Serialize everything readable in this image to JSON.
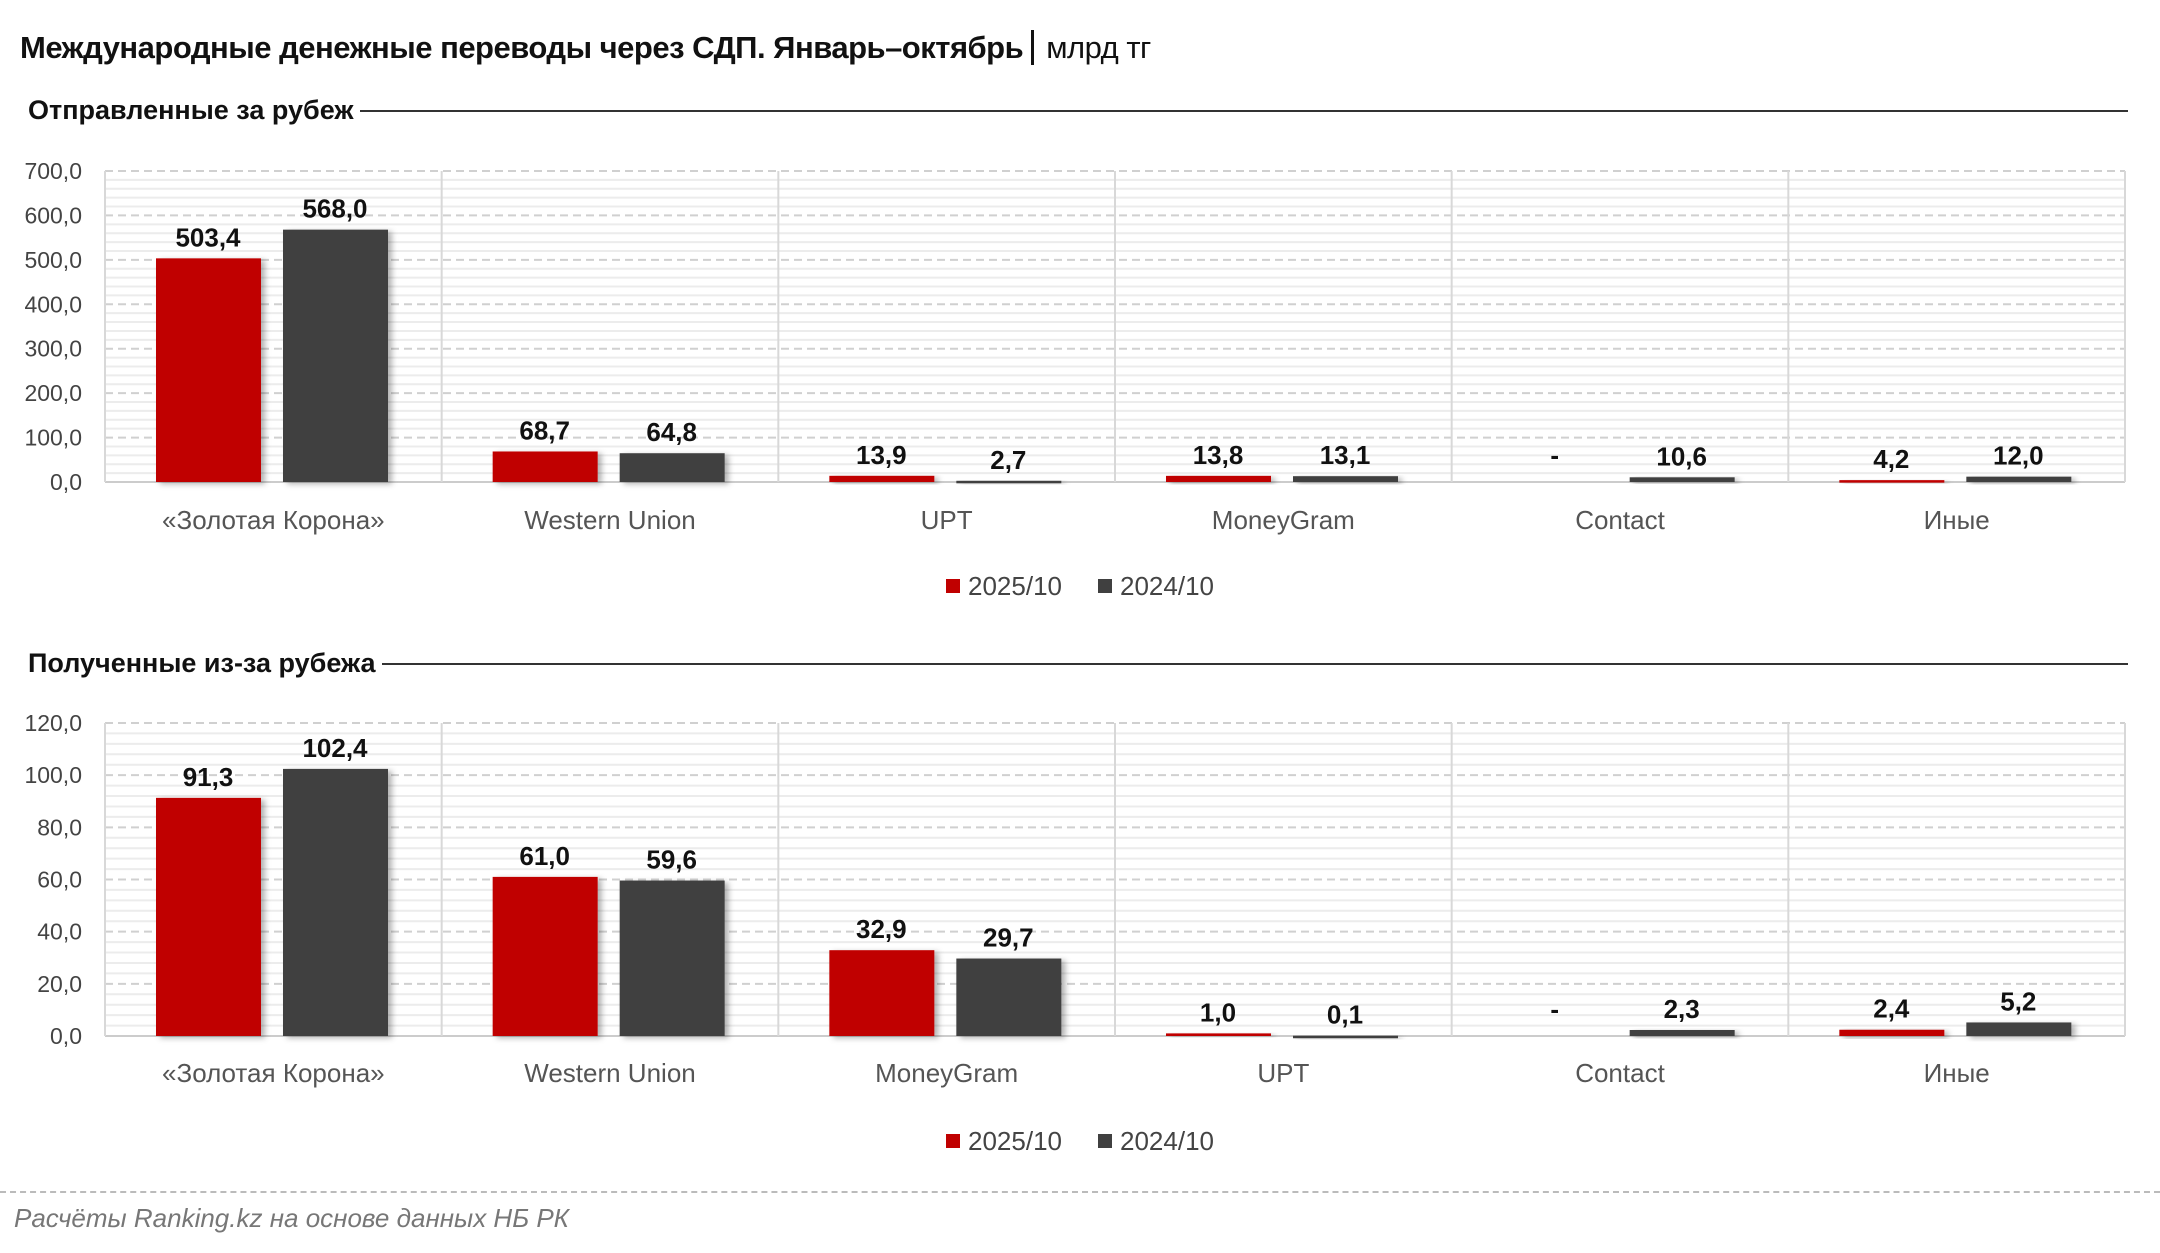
{
  "title": "Международные денежные переводы через СДП. Январь–октябрь",
  "unit": "млрд тг",
  "footer": "Расчёты Ranking.kz на основе данных НБ РК",
  "colors": {
    "2025/10": "#c00000",
    "2024/10": "#404040"
  },
  "chart_data": [
    {
      "type": "bar",
      "title": "Отправленные за рубеж",
      "categories": [
        "«Золотая Корона»",
        "Western Union",
        "UPT",
        "MoneyGram",
        "Contact",
        "Иные"
      ],
      "series": [
        {
          "name": "2025/10",
          "values": [
            503.4,
            68.7,
            13.9,
            13.8,
            null,
            4.2
          ],
          "labels": [
            "503,4",
            "68,7",
            "13,9",
            "13,8",
            "-",
            "4,2"
          ]
        },
        {
          "name": "2024/10",
          "values": [
            568.0,
            64.8,
            2.7,
            13.1,
            10.6,
            12.0
          ],
          "labels": [
            "568,0",
            "64,8",
            "2,7",
            "13,1",
            "10,6",
            "12,0"
          ]
        }
      ],
      "ylim": [
        0,
        700
      ],
      "yticks": [
        "0,0",
        "100,0",
        "200,0",
        "300,0",
        "400,0",
        "500,0",
        "600,0",
        "700,0"
      ],
      "grid": true,
      "legend": "bottom"
    },
    {
      "type": "bar",
      "title": "Полученные из-за рубежа",
      "categories": [
        "«Золотая Корона»",
        "Western Union",
        "MoneyGram",
        "UPT",
        "Contact",
        "Иные"
      ],
      "series": [
        {
          "name": "2025/10",
          "values": [
            91.3,
            61.0,
            32.9,
            1.0,
            null,
            2.4
          ],
          "labels": [
            "91,3",
            "61,0",
            "32,9",
            "1,0",
            "-",
            "2,4"
          ]
        },
        {
          "name": "2024/10",
          "values": [
            102.4,
            59.6,
            29.7,
            0.1,
            2.3,
            5.2
          ],
          "labels": [
            "102,4",
            "59,6",
            "29,7",
            "0,1",
            "2,3",
            "5,2"
          ]
        }
      ],
      "ylim": [
        0,
        120
      ],
      "yticks": [
        "0,0",
        "20,0",
        "40,0",
        "60,0",
        "80,0",
        "100,0",
        "120,0"
      ],
      "grid": true,
      "legend": "bottom"
    }
  ]
}
